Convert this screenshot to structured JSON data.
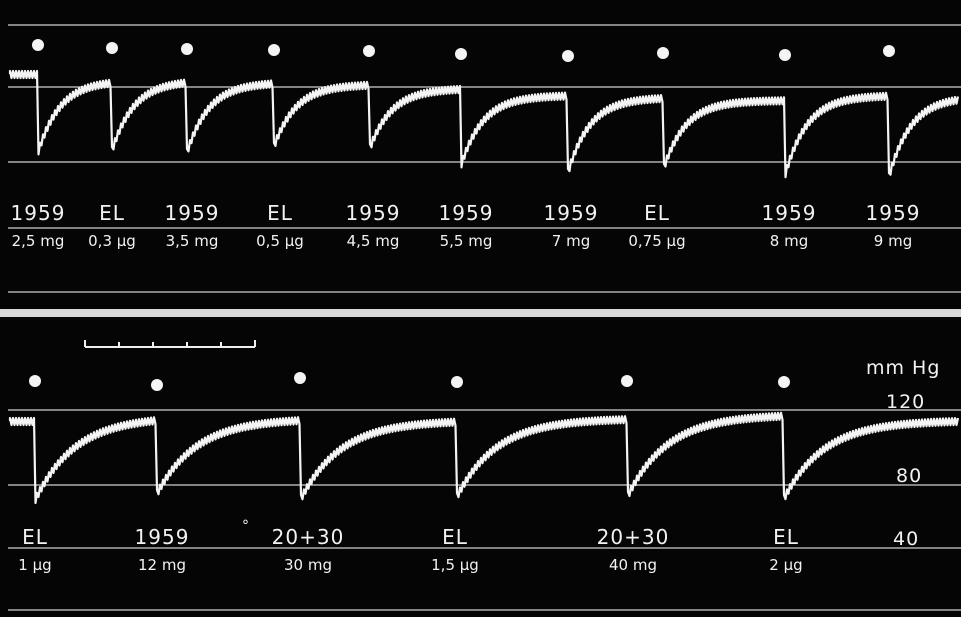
{
  "panels": [
    {
      "injections": [
        {
          "drug": "1959",
          "dose": "2,5 mg"
        },
        {
          "drug": "EL",
          "dose": "0,3 µg"
        },
        {
          "drug": "1959",
          "dose": "3,5 mg"
        },
        {
          "drug": "EL",
          "dose": "0,5 µg"
        },
        {
          "drug": "1959",
          "dose": "4,5 mg"
        },
        {
          "drug": "1959",
          "dose": "5,5 mg"
        },
        {
          "drug": "1959",
          "dose": "7 mg"
        },
        {
          "drug": "EL",
          "dose": "0,75 µg"
        },
        {
          "drug": "1959",
          "dose": "8 mg"
        },
        {
          "drug": "1959",
          "dose": "9 mg"
        }
      ]
    },
    {
      "injections": [
        {
          "drug": "EL",
          "dose": "1 µg"
        },
        {
          "drug": "1959",
          "dose": "12 mg"
        },
        {
          "drug": "20+30",
          "dose": "30 mg"
        },
        {
          "drug": "EL",
          "dose": "1,5 µg"
        },
        {
          "drug": "20+30",
          "dose": "40 mg"
        },
        {
          "drug": "EL",
          "dose": "2 µg"
        }
      ]
    }
  ],
  "pressure_scale": {
    "unit": "mm Hg",
    "ticks": [
      "120",
      "80",
      "40"
    ]
  },
  "stray_mark": "°"
}
